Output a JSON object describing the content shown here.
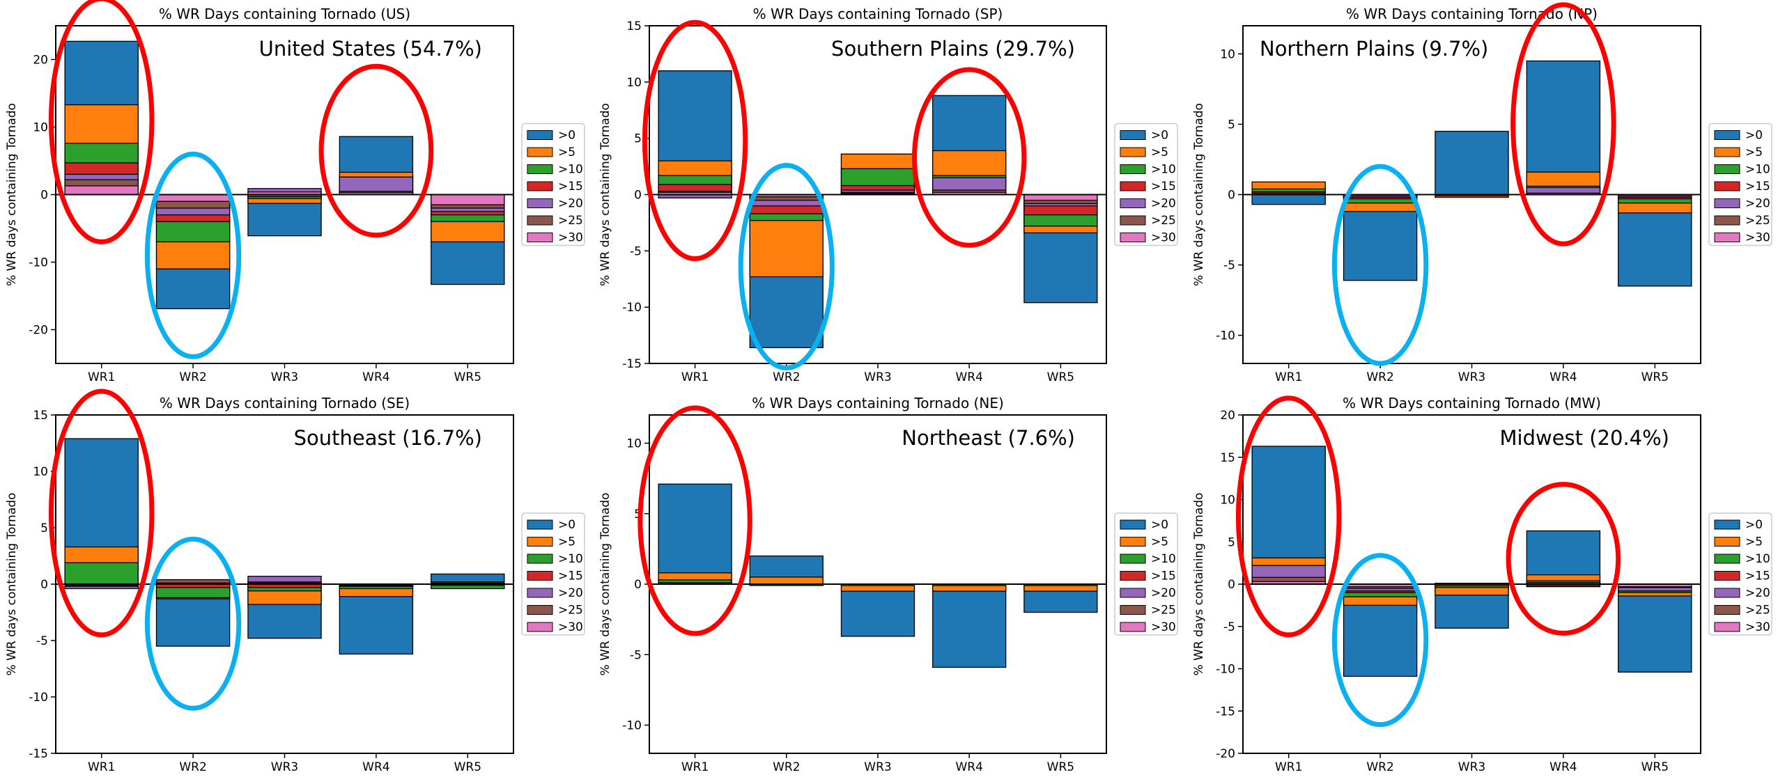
{
  "legend": {
    "entries": [
      {
        "label": ">0",
        "color": "#1f77b4"
      },
      {
        "label": ">5",
        "color": "#ff7f0e"
      },
      {
        "label": ">10",
        "color": "#2ca02c"
      },
      {
        "label": ">15",
        "color": "#d62728"
      },
      {
        "label": ">20",
        "color": "#9467bd"
      },
      {
        "label": ">25",
        "color": "#8c564b"
      },
      {
        "label": ">30",
        "color": "#e377c2"
      }
    ]
  },
  "highlight_colors": {
    "red": "#ff0000",
    "blue": "#0ab0ef"
  },
  "chart_data": [
    {
      "type": "bar",
      "title": "% WR Days containing Tornado (US)",
      "annotation": "United States (54.7%)",
      "ylabel": "% WR days containing Tornado",
      "categories": [
        "WR1",
        "WR2",
        "WR3",
        "WR4",
        "WR5"
      ],
      "ylim": [
        -25,
        25
      ],
      "yticks": [
        -20,
        -10,
        0,
        10,
        20
      ],
      "stacks": [
        [
          [
            0,
            22.7
          ],
          [
            0,
            13.3
          ],
          [
            0,
            7.6
          ],
          [
            0,
            4.7
          ],
          [
            0,
            3.0
          ],
          [
            0,
            2.2
          ],
          [
            0,
            1.3
          ]
        ],
        [
          [
            0,
            -16.9
          ],
          [
            0,
            -11.0
          ],
          [
            0,
            -7.0
          ],
          [
            0,
            -4.0
          ],
          [
            0,
            -3.0
          ],
          [
            0,
            -2.0
          ],
          [
            0,
            -1.0
          ]
        ],
        [
          [
            0,
            -6.1
          ],
          [
            0,
            -1.3
          ],
          [
            0,
            -0.6
          ],
          [
            0,
            -0.3
          ],
          [
            0,
            0.9
          ],
          [
            0,
            -0.3
          ],
          [
            0,
            0.4
          ]
        ],
        [
          [
            0,
            8.6
          ],
          [
            0,
            3.3
          ],
          [
            0,
            2.6
          ],
          [
            0,
            0.8
          ],
          [
            0,
            2.6
          ],
          [
            0,
            0.5
          ],
          [
            0,
            0.3
          ]
        ],
        [
          [
            0,
            -13.3
          ],
          [
            0,
            -7.0
          ],
          [
            0,
            -4.0
          ],
          [
            0,
            -3.0
          ],
          [
            0,
            -2.5
          ],
          [
            0,
            -2.0
          ],
          [
            0,
            -1.5
          ]
        ]
      ],
      "circles": [
        {
          "color": "red",
          "cx": 0,
          "cy": 11,
          "rx": 0.55,
          "ry": 18
        },
        {
          "color": "blue",
          "cx": 1,
          "cy": -9,
          "rx": 0.5,
          "ry": 15
        },
        {
          "color": "red",
          "cx": 3,
          "cy": 6.5,
          "rx": 0.6,
          "ry": 12.5
        }
      ]
    },
    {
      "type": "bar",
      "title": "% WR Days containing Tornado (SP)",
      "annotation": "Southern Plains (29.7%)",
      "ylabel": "% WR days containing Tornado",
      "categories": [
        "WR1",
        "WR2",
        "WR3",
        "WR4",
        "WR5"
      ],
      "ylim": [
        -15,
        15
      ],
      "yticks": [
        -15,
        -10,
        -5,
        0,
        5,
        10,
        15
      ],
      "stacks": [
        [
          [
            0,
            11.0
          ],
          [
            0,
            3.0
          ],
          [
            0,
            1.7
          ],
          [
            0,
            0.9
          ],
          [
            0,
            -0.3
          ],
          [
            0,
            0.3
          ],
          [
            0,
            0.2
          ]
        ],
        [
          [
            0,
            -13.6
          ],
          [
            0,
            -7.3
          ],
          [
            0,
            -2.3
          ],
          [
            0,
            -1.7
          ],
          [
            0,
            -1.0
          ],
          [
            0,
            -0.5
          ],
          [
            0,
            -0.2
          ]
        ],
        [
          [
            0,
            3.6
          ],
          [
            0,
            3.6
          ],
          [
            0,
            2.3
          ],
          [
            0,
            0.8
          ],
          [
            0,
            0.4
          ],
          [
            0,
            0.2
          ],
          [
            0,
            0.1
          ]
        ],
        [
          [
            0,
            8.8
          ],
          [
            0,
            3.9
          ],
          [
            0,
            1.7
          ],
          [
            0,
            1.2
          ],
          [
            0,
            1.5
          ],
          [
            0,
            0.4
          ],
          [
            0,
            0.2
          ]
        ],
        [
          [
            0,
            -9.6
          ],
          [
            0,
            -3.4
          ],
          [
            0,
            -2.8
          ],
          [
            0,
            -1.8
          ],
          [
            0,
            -1.0
          ],
          [
            0,
            -0.8
          ],
          [
            0,
            -0.5
          ]
        ]
      ],
      "circles": [
        {
          "color": "red",
          "cx": 0,
          "cy": 4.8,
          "rx": 0.55,
          "ry": 10.5
        },
        {
          "color": "blue",
          "cx": 1,
          "cy": -6.4,
          "rx": 0.5,
          "ry": 9
        },
        {
          "color": "red",
          "cx": 3,
          "cy": 3.3,
          "rx": 0.6,
          "ry": 7.8
        }
      ]
    },
    {
      "type": "bar",
      "title": "% WR Days containing Tornado (NP)",
      "annotation": "Northern Plains (9.7%)",
      "ylabel": "% WR days containing Tornado",
      "categories": [
        "WR1",
        "WR2",
        "WR3",
        "WR4",
        "WR5"
      ],
      "ylim": [
        -12,
        12
      ],
      "yticks": [
        -10,
        -5,
        0,
        5,
        10
      ],
      "stacks": [
        [
          [
            0,
            -0.7
          ],
          [
            0,
            0.9
          ],
          [
            0,
            0.4
          ],
          [
            0,
            0.2
          ],
          [
            0,
            0.1
          ],
          [
            0,
            0.1
          ],
          [
            0,
            0.0
          ]
        ],
        [
          [
            0,
            -6.1
          ],
          [
            0,
            -1.2
          ],
          [
            0,
            -0.6
          ],
          [
            0,
            -0.3
          ],
          [
            0,
            -0.2
          ],
          [
            0,
            -0.1
          ],
          [
            0,
            -0.1
          ]
        ],
        [
          [
            0,
            4.5
          ],
          [
            0,
            -0.2
          ],
          [
            0,
            0.0
          ],
          [
            0,
            -0.1
          ],
          [
            0,
            0.0
          ],
          [
            0,
            0.0
          ],
          [
            0,
            0.0
          ]
        ],
        [
          [
            0,
            9.5
          ],
          [
            0,
            1.6
          ],
          [
            0,
            0.6
          ],
          [
            0,
            0.4
          ],
          [
            0,
            0.5
          ],
          [
            0,
            0.1
          ],
          [
            0,
            0.1
          ]
        ],
        [
          [
            0,
            -6.5
          ],
          [
            0,
            -1.3
          ],
          [
            0,
            -0.6
          ],
          [
            0,
            -0.3
          ],
          [
            0,
            -0.2
          ],
          [
            0,
            -0.1
          ],
          [
            0,
            -0.1
          ]
        ]
      ],
      "circles": [
        {
          "color": "red",
          "cx": 0.0,
          "cy": 0,
          "rx": 0,
          "ry": 0
        },
        {
          "color": "blue",
          "cx": 1,
          "cy": -5.0,
          "rx": 0.5,
          "ry": 7
        },
        {
          "color": "red",
          "cx": 3,
          "cy": 5.0,
          "rx": 0.55,
          "ry": 8.5
        }
      ]
    },
    {
      "type": "bar",
      "title": "% WR Days containing Tornado (SE)",
      "annotation": "Southeast (16.7%)",
      "ylabel": "% WR days containing Tornado",
      "categories": [
        "WR1",
        "WR2",
        "WR3",
        "WR4",
        "WR5"
      ],
      "ylim": [
        -15,
        15
      ],
      "yticks": [
        -15,
        -10,
        -5,
        0,
        5,
        10,
        15
      ],
      "stacks": [
        [
          [
            0,
            12.9
          ],
          [
            0,
            3.3
          ],
          [
            0,
            1.9
          ],
          [
            0,
            -0.1
          ],
          [
            0,
            -0.4
          ],
          [
            0,
            -0.2
          ],
          [
            0,
            -0.1
          ]
        ],
        [
          [
            0,
            -5.5
          ],
          [
            0,
            -1.3
          ],
          [
            0,
            -1.2
          ],
          [
            0,
            -0.3
          ],
          [
            0,
            0.3
          ],
          [
            0,
            0.4
          ],
          [
            0,
            0.1
          ]
        ],
        [
          [
            0,
            -4.8
          ],
          [
            0,
            -1.8
          ],
          [
            0,
            -0.6
          ],
          [
            0,
            -0.3
          ],
          [
            0,
            0.7
          ],
          [
            0,
            0.2
          ],
          [
            0,
            0.1
          ]
        ],
        [
          [
            0,
            -6.2
          ],
          [
            0,
            -1.1
          ],
          [
            0,
            -0.4
          ],
          [
            0,
            -0.2
          ],
          [
            0,
            -0.1
          ],
          [
            0,
            -0.1
          ],
          [
            0,
            0.0
          ]
        ],
        [
          [
            0,
            0.9
          ],
          [
            0,
            0.2
          ],
          [
            0,
            -0.4
          ],
          [
            0,
            -0.1
          ],
          [
            0,
            0.1
          ],
          [
            0,
            0.0
          ],
          [
            0,
            0.0
          ]
        ]
      ],
      "circles": [
        {
          "color": "red",
          "cx": 0,
          "cy": 6.3,
          "rx": 0.55,
          "ry": 10.8
        },
        {
          "color": "blue",
          "cx": 1,
          "cy": -3.5,
          "rx": 0.5,
          "ry": 7.5
        }
      ]
    },
    {
      "type": "bar",
      "title": "% WR Days containing Tornado (NE)",
      "annotation": "Northeast (7.6%)",
      "ylabel": "% WR days containing Tornado",
      "categories": [
        "WR1",
        "WR2",
        "WR3",
        "WR4",
        "WR5"
      ],
      "ylim": [
        -12,
        12
      ],
      "yticks": [
        -10,
        -5,
        0,
        5,
        10
      ],
      "stacks": [
        [
          [
            0,
            7.1
          ],
          [
            0,
            0.8
          ],
          [
            0,
            0.3
          ],
          [
            0,
            0.1
          ],
          [
            0,
            0.1
          ],
          [
            0,
            0.0
          ],
          [
            0,
            0.0
          ]
        ],
        [
          [
            0,
            2.0
          ],
          [
            0,
            0.5
          ],
          [
            0,
            -0.1
          ],
          [
            0,
            0.0
          ],
          [
            0,
            0.0
          ],
          [
            0,
            0.0
          ],
          [
            0,
            0.0
          ]
        ],
        [
          [
            0,
            -3.7
          ],
          [
            0,
            -0.5
          ],
          [
            0,
            -0.1
          ],
          [
            0,
            0.0
          ],
          [
            0,
            0.0
          ],
          [
            0,
            0.0
          ],
          [
            0,
            0.0
          ]
        ],
        [
          [
            0,
            -5.9
          ],
          [
            0,
            -0.5
          ],
          [
            0,
            -0.1
          ],
          [
            0,
            0.0
          ],
          [
            0,
            0.0
          ],
          [
            0,
            0.0
          ],
          [
            0,
            0.0
          ]
        ],
        [
          [
            0,
            -2.0
          ],
          [
            0,
            -0.5
          ],
          [
            0,
            -0.1
          ],
          [
            0,
            0.0
          ],
          [
            0,
            0.0
          ],
          [
            0,
            0.0
          ],
          [
            0,
            0.0
          ]
        ]
      ],
      "circles": [
        {
          "color": "red",
          "cx": 0,
          "cy": 4.5,
          "rx": 0.6,
          "ry": 8.0
        }
      ]
    },
    {
      "type": "bar",
      "title": "% WR Days containing Tornado (MW)",
      "annotation": "Midwest (20.4%)",
      "ylabel": "% WR days containing Tornado",
      "categories": [
        "WR1",
        "WR2",
        "WR3",
        "WR4",
        "WR5"
      ],
      "ylim": [
        -20,
        20
      ],
      "yticks": [
        -20,
        -15,
        -10,
        -5,
        0,
        5,
        10,
        15,
        20
      ],
      "stacks": [
        [
          [
            0,
            16.3
          ],
          [
            0,
            3.1
          ],
          [
            0,
            2.2
          ],
          [
            0,
            1.5
          ],
          [
            0,
            2.2
          ],
          [
            0,
            0.8
          ],
          [
            0,
            0.3
          ]
        ],
        [
          [
            0,
            -10.9
          ],
          [
            0,
            -2.5
          ],
          [
            0,
            -1.5
          ],
          [
            0,
            -1.0
          ],
          [
            0,
            -0.8
          ],
          [
            0,
            -0.5
          ],
          [
            0,
            -0.3
          ]
        ],
        [
          [
            0,
            -5.2
          ],
          [
            0,
            -1.3
          ],
          [
            0,
            -0.4
          ],
          [
            0,
            -0.2
          ],
          [
            0,
            0.1
          ],
          [
            0,
            0.1
          ],
          [
            0,
            0.0
          ]
        ],
        [
          [
            0,
            6.3
          ],
          [
            0,
            1.1
          ],
          [
            0,
            0.4
          ],
          [
            0,
            0.2
          ],
          [
            0,
            -0.3
          ],
          [
            0,
            -0.2
          ],
          [
            0,
            0.0
          ]
        ],
        [
          [
            0,
            -10.4
          ],
          [
            0,
            -1.4
          ],
          [
            0,
            -1.0
          ],
          [
            0,
            -0.8
          ],
          [
            0,
            -0.8
          ],
          [
            0,
            -0.4
          ],
          [
            0,
            -0.3
          ]
        ]
      ],
      "circles": [
        {
          "color": "red",
          "cx": 0,
          "cy": 8.0,
          "rx": 0.55,
          "ry": 14.0
        },
        {
          "color": "blue",
          "cx": 1,
          "cy": -6.6,
          "rx": 0.5,
          "ry": 10.0
        },
        {
          "color": "red",
          "cx": 3,
          "cy": 3.0,
          "rx": 0.6,
          "ry": 8.8
        }
      ]
    }
  ]
}
